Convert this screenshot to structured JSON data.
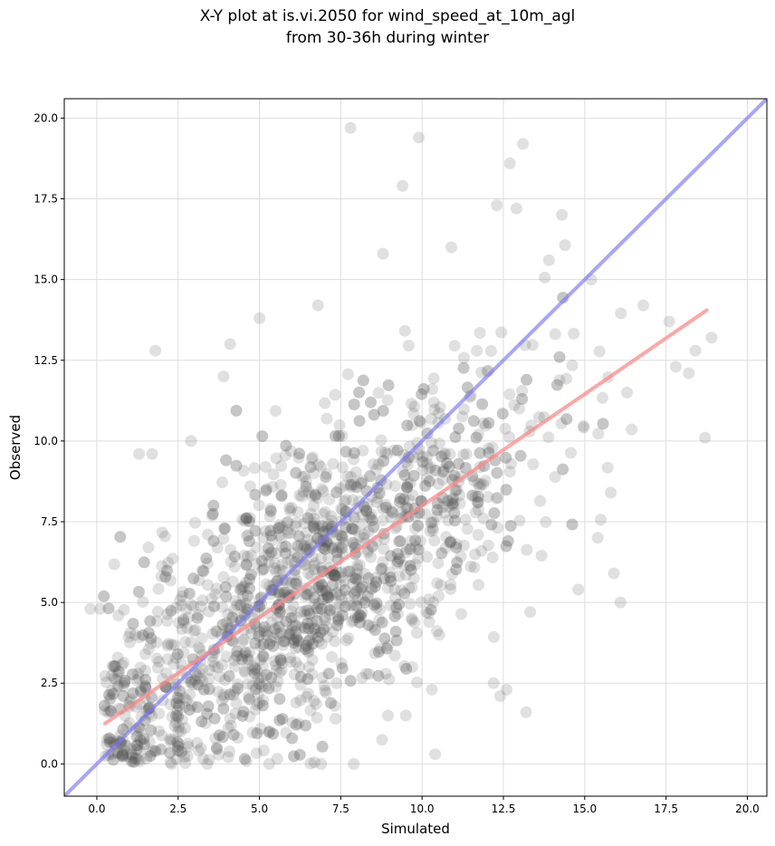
{
  "chart_data": {
    "type": "scatter",
    "title": "X-Y plot at is.vi.2050 for wind_speed_at_10m_agl",
    "subtitle": "from 30-36h during winter",
    "xlabel": "Simulated",
    "ylabel": "Observed",
    "xlim": [
      -1.0,
      20.6
    ],
    "ylim": [
      -1.0,
      20.6
    ],
    "x_ticks": [
      "0.0",
      "2.5",
      "5.0",
      "7.5",
      "10.0",
      "12.5",
      "15.0",
      "17.5",
      "20.0"
    ],
    "y_ticks": [
      "0.0",
      "2.5",
      "5.0",
      "7.5",
      "10.0",
      "12.5",
      "15.0",
      "17.5",
      "20.0"
    ],
    "grid": true,
    "colors": {
      "points": "#555555",
      "identity_line": "#7777ff",
      "fit_line": "#ff8888"
    },
    "identity_line": {
      "x": [
        -1.0,
        20.6
      ],
      "y": [
        -1.0,
        20.6
      ]
    },
    "fit_line": {
      "x": [
        0.25,
        18.75
      ],
      "y": [
        1.25,
        14.05
      ]
    },
    "point_count_estimate": 1800,
    "points_notable": [
      [
        7.8,
        19.7
      ],
      [
        9.9,
        19.4
      ],
      [
        13.1,
        19.2
      ],
      [
        12.7,
        18.6
      ],
      [
        9.4,
        17.9
      ],
      [
        12.3,
        17.3
      ],
      [
        12.9,
        17.2
      ],
      [
        14.3,
        17.0
      ],
      [
        8.8,
        15.8
      ],
      [
        10.9,
        16.0
      ],
      [
        13.9,
        15.6
      ],
      [
        15.2,
        15.0
      ],
      [
        16.8,
        14.2
      ],
      [
        17.6,
        13.7
      ],
      [
        18.4,
        12.8
      ],
      [
        18.9,
        13.2
      ],
      [
        18.7,
        10.1
      ],
      [
        17.8,
        12.3
      ],
      [
        18.2,
        12.1
      ],
      [
        16.3,
        11.5
      ],
      [
        15.8,
        8.4
      ],
      [
        15.9,
        5.9
      ],
      [
        16.1,
        5.0
      ],
      [
        14.8,
        5.4
      ],
      [
        15.4,
        7.0
      ],
      [
        13.2,
        1.6
      ],
      [
        12.6,
        2.3
      ],
      [
        12.2,
        2.5
      ],
      [
        12.4,
        2.1
      ],
      [
        10.4,
        0.3
      ],
      [
        9.5,
        1.5
      ],
      [
        10.3,
        2.3
      ],
      [
        9.7,
        3.0
      ],
      [
        5.0,
        13.8
      ],
      [
        4.1,
        13.0
      ],
      [
        3.9,
        12.0
      ],
      [
        6.8,
        14.2
      ],
      [
        1.8,
        12.8
      ],
      [
        1.3,
        9.6
      ],
      [
        1.7,
        9.6
      ],
      [
        2.9,
        10.0
      ],
      [
        0.1,
        4.8
      ],
      [
        0.3,
        0.6
      ],
      [
        -0.2,
        4.8
      ],
      [
        3.4,
        0.0
      ],
      [
        5.3,
        0.0
      ],
      [
        2.3,
        0.0
      ],
      [
        7.9,
        0.0
      ],
      [
        6.9,
        0.0
      ],
      [
        4.1,
        1.4
      ]
    ]
  }
}
